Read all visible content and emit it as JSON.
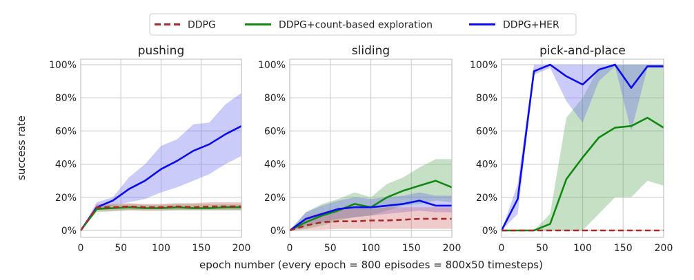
{
  "legend": {
    "entries": [
      {
        "label": "DDPG",
        "color": "#a52a2a",
        "dash": true
      },
      {
        "label": "DDPG+count-based exploration",
        "color": "#118811",
        "dash": false
      },
      {
        "label": "DDPG+HER",
        "color": "#0a0aee",
        "dash": false
      }
    ]
  },
  "xlabel": "epoch number (every epoch = 800 episodes = 800x50 timesteps)",
  "ylabel": "success rate",
  "chart_data": [
    {
      "type": "line",
      "title": "pushing",
      "xlim": [
        0,
        200
      ],
      "ylim": [
        0,
        100
      ],
      "xticks": [
        "0",
        "50",
        "100",
        "150",
        "200"
      ],
      "yticks": [
        "0%",
        "20%",
        "40%",
        "60%",
        "80%",
        "100%"
      ],
      "show_yticks": true,
      "grid": true,
      "x": [
        0,
        20,
        40,
        60,
        80,
        100,
        120,
        140,
        160,
        180,
        200
      ],
      "series": [
        {
          "name": "DDPG+HER",
          "color": "#0a0aee",
          "band_color": "#6b6bee",
          "dash": false,
          "values": [
            0,
            14,
            18,
            25,
            30,
            37,
            42,
            48,
            52,
            58,
            63
          ],
          "lower": [
            0,
            12,
            15,
            17,
            19,
            23,
            26,
            30,
            34,
            40,
            45
          ],
          "upper": [
            0,
            17,
            20,
            32,
            40,
            51,
            55,
            64,
            65,
            76,
            83
          ]
        },
        {
          "name": "DDPG+count-based exploration",
          "color": "#118811",
          "band_color": "#5aa55a",
          "dash": false,
          "values": [
            0,
            13,
            13.5,
            14,
            13.5,
            13.5,
            14,
            13.5,
            13.5,
            14,
            14
          ],
          "lower": [
            0,
            11,
            11.5,
            12,
            12,
            12,
            12,
            12,
            12,
            12,
            12
          ],
          "upper": [
            0,
            15,
            15.5,
            16,
            15.5,
            15.5,
            16,
            16,
            16,
            16,
            16
          ]
        },
        {
          "name": "DDPG",
          "color": "#a52a2a",
          "band_color": "#d06a6a",
          "dash": true,
          "values": [
            0,
            14,
            14,
            14.5,
            14,
            14,
            14.5,
            14,
            14.5,
            14.5,
            14.5
          ],
          "lower": [
            0,
            12,
            12,
            12.5,
            12,
            12,
            12.5,
            12.5,
            12.5,
            12.5,
            12.5
          ],
          "upper": [
            0,
            16,
            16,
            16.5,
            16,
            16,
            16.5,
            16.5,
            17,
            17,
            17
          ]
        }
      ]
    },
    {
      "type": "line",
      "title": "sliding",
      "xlim": [
        0,
        200
      ],
      "ylim": [
        0,
        100
      ],
      "xticks": [
        "0",
        "50",
        "100",
        "150",
        "200"
      ],
      "yticks": [
        "0%",
        "20%",
        "40%",
        "60%",
        "80%",
        "100%"
      ],
      "show_yticks": true,
      "grid": true,
      "x": [
        0,
        20,
        40,
        60,
        80,
        100,
        120,
        140,
        160,
        180,
        200
      ],
      "series": [
        {
          "name": "DDPG+count-based exploration",
          "color": "#118811",
          "band_color": "#5aa55a",
          "dash": false,
          "values": [
            0,
            5,
            9,
            12,
            16,
            14,
            20,
            24,
            27,
            30,
            26
          ],
          "lower": [
            0,
            1,
            3,
            6,
            8,
            9,
            12,
            15,
            16,
            18,
            17
          ],
          "upper": [
            0,
            11,
            16,
            19,
            23,
            20,
            28,
            32,
            38,
            43,
            43
          ]
        },
        {
          "name": "DDPG+HER",
          "color": "#0a0aee",
          "band_color": "#6b6bee",
          "dash": false,
          "values": [
            0,
            7,
            10,
            13,
            14,
            14,
            15,
            16,
            18,
            15,
            15
          ],
          "lower": [
            0,
            3,
            5,
            7,
            8,
            9,
            10,
            11,
            12,
            11,
            11
          ],
          "upper": [
            0,
            11,
            15,
            18,
            20,
            19,
            20,
            21,
            23,
            21,
            21
          ]
        },
        {
          "name": "DDPG",
          "color": "#a52a2a",
          "band_color": "#d06a6a",
          "dash": true,
          "values": [
            0,
            3,
            5,
            5.5,
            5.5,
            6,
            6,
            6.5,
            7,
            7,
            7
          ],
          "lower": [
            0,
            0.5,
            0.5,
            1,
            1,
            1,
            1,
            1,
            1,
            1,
            1
          ],
          "upper": [
            0,
            8,
            11,
            13,
            13,
            13,
            14,
            14,
            14,
            14,
            14
          ]
        }
      ]
    },
    {
      "type": "line",
      "title": "pick-and-place",
      "xlim": [
        0,
        200
      ],
      "ylim": [
        0,
        100
      ],
      "xticks": [
        "0",
        "50",
        "100",
        "150",
        "200"
      ],
      "yticks": [
        "0%",
        "20%",
        "40%",
        "60%",
        "80%",
        "100%"
      ],
      "show_yticks": true,
      "grid": true,
      "x": [
        0,
        20,
        40,
        60,
        80,
        100,
        120,
        140,
        160,
        180,
        200
      ],
      "series": [
        {
          "name": "DDPG+count-based exploration",
          "color": "#118811",
          "band_color": "#5aa55a",
          "dash": false,
          "values": [
            0,
            0,
            0,
            4,
            31,
            44,
            56,
            62,
            63,
            68,
            62
          ],
          "lower": [
            0,
            0,
            0,
            0,
            0,
            0,
            10,
            20,
            20,
            30,
            27
          ],
          "upper": [
            0,
            0,
            0,
            10,
            68,
            80,
            98,
            100,
            100,
            100,
            100
          ]
        },
        {
          "name": "DDPG+HER",
          "color": "#0a0aee",
          "band_color": "#6b6bee",
          "dash": false,
          "values": [
            0,
            19,
            96,
            100,
            93,
            88,
            97,
            100,
            86,
            99,
            99
          ],
          "lower": [
            0,
            10,
            94,
            98,
            78,
            65,
            90,
            99,
            60,
            98,
            98
          ],
          "upper": [
            0,
            28,
            100,
            100,
            100,
            100,
            100,
            100,
            100,
            100,
            100
          ]
        },
        {
          "name": "DDPG",
          "color": "#a52a2a",
          "band_color": "#d06a6a",
          "dash": true,
          "values": [
            0,
            0,
            0,
            0,
            0,
            0,
            0,
            0,
            0,
            0,
            0
          ],
          "lower": [
            0,
            0,
            0,
            0,
            0,
            0,
            0,
            0,
            0,
            0,
            0
          ],
          "upper": [
            0,
            0.5,
            0.5,
            0.5,
            0.5,
            0.5,
            0.5,
            0.5,
            0.5,
            0.5,
            0.5
          ]
        }
      ]
    }
  ]
}
